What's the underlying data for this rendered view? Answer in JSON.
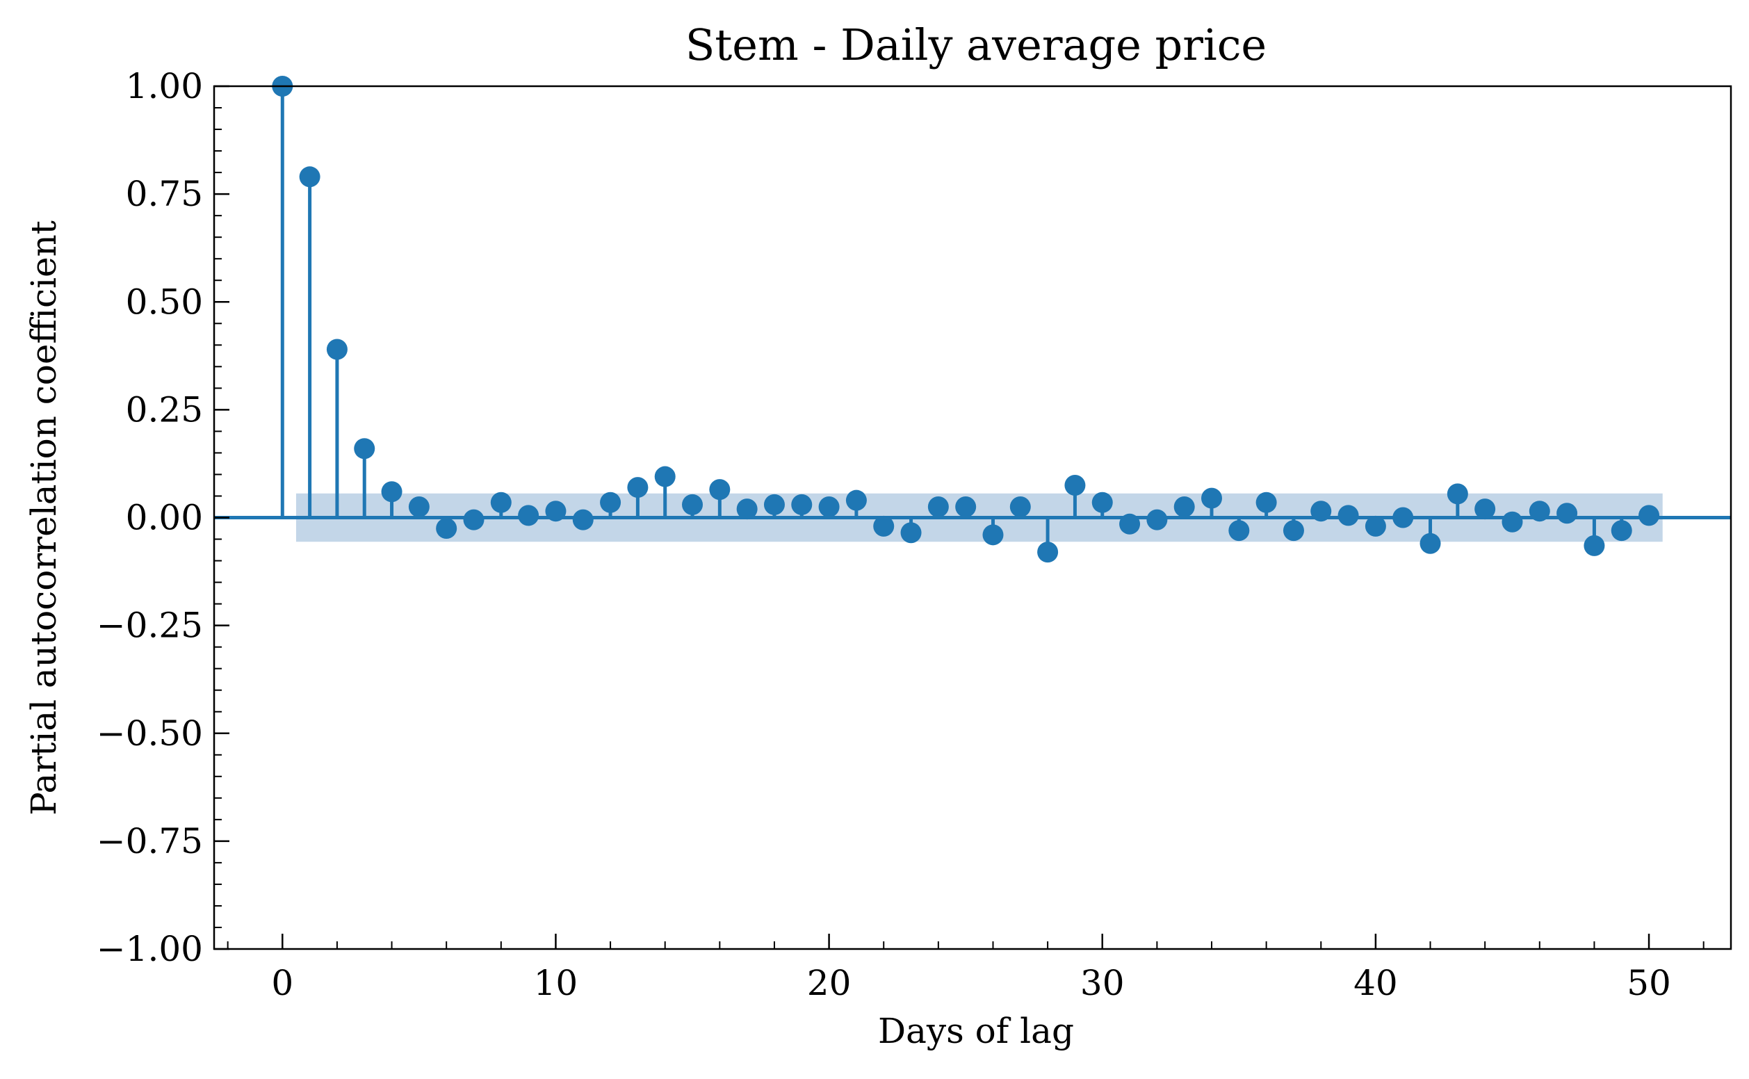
{
  "chart_data": {
    "type": "scatter",
    "subtype": "stem",
    "title": "Stem - Daily average price",
    "xlabel": "Days of lag",
    "ylabel": "Partial autocorrelation coefficient",
    "xlim": [
      -2.5,
      53
    ],
    "ylim": [
      -1.0,
      1.0
    ],
    "x_ticks": [
      0,
      10,
      20,
      30,
      40,
      50
    ],
    "x_tick_labels": [
      "0",
      "10",
      "20",
      "30",
      "40",
      "50"
    ],
    "y_ticks": [
      1.0,
      0.75,
      0.5,
      0.25,
      0.0,
      -0.25,
      -0.5,
      -0.75,
      -1.0
    ],
    "y_tick_labels": [
      "1.00",
      "0.75",
      "0.50",
      "0.25",
      "0.00",
      "−0.25",
      "−0.50",
      "−0.75",
      "−1.00"
    ],
    "grid": false,
    "color": "#1f77b4",
    "band_color": "#c3d6e8",
    "confidence_band": {
      "x_start": 0.5,
      "x_end": 50.5,
      "lower": -0.056,
      "upper": 0.056
    },
    "series": [
      {
        "x": [
          0,
          1,
          2,
          3,
          4,
          5,
          6,
          7,
          8,
          9,
          10,
          11,
          12,
          13,
          14,
          15,
          16,
          17,
          18,
          19,
          20,
          21,
          22,
          23,
          24,
          25,
          26,
          27,
          28,
          29,
          30,
          31,
          32,
          33,
          34,
          35,
          36,
          37,
          38,
          39,
          40,
          41,
          42,
          43,
          44,
          45,
          46,
          47,
          48,
          49,
          50
        ],
        "values": [
          1.0,
          0.79,
          0.39,
          0.16,
          0.06,
          0.025,
          -0.025,
          -0.005,
          0.035,
          0.005,
          0.015,
          -0.005,
          0.035,
          0.07,
          0.095,
          0.03,
          0.065,
          0.02,
          0.03,
          0.03,
          0.025,
          0.04,
          -0.02,
          -0.035,
          0.025,
          0.025,
          -0.04,
          0.025,
          -0.08,
          0.075,
          0.035,
          -0.015,
          -0.005,
          0.025,
          0.045,
          -0.03,
          0.035,
          -0.03,
          0.015,
          0.005,
          -0.02,
          0.0,
          -0.06,
          0.055,
          0.02,
          -0.01,
          0.015,
          0.01,
          -0.065,
          -0.03,
          0.005
        ]
      }
    ]
  }
}
